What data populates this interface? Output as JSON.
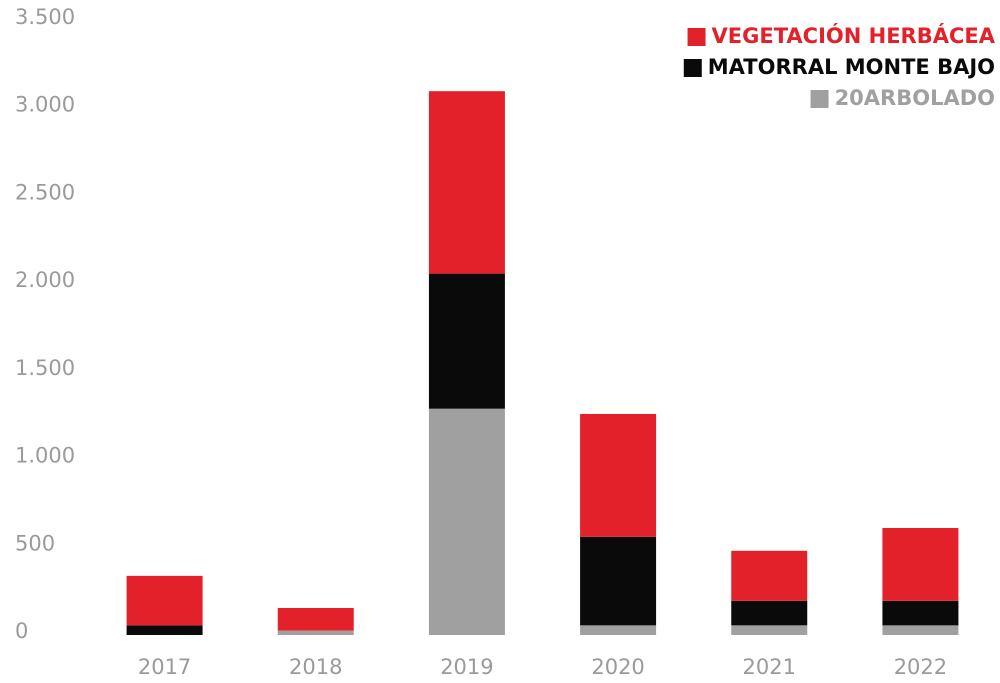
{
  "chart_data": {
    "type": "stacked_bar",
    "categories": [
      "2017",
      "2018",
      "2019",
      "2020",
      "2021",
      "2022"
    ],
    "series": [
      {
        "name": "20ARBOLADO",
        "color": "#a0a0a0",
        "values": [
          0,
          25,
          1290,
          55,
          55,
          55
        ]
      },
      {
        "name": "MATORRAL MONTE BAJO",
        "color": "#0a0a0a",
        "values": [
          55,
          0,
          770,
          505,
          140,
          140
        ]
      },
      {
        "name": "VEGETACIÓN HERBÁCEA",
        "color": "#e3212b",
        "values": [
          282,
          129,
          1040,
          700,
          285,
          415
        ]
      }
    ],
    "ylim": [
      0,
      3500
    ],
    "yticks": [
      0,
      500,
      {
        "value": 1000,
        "label": "1.000"
      },
      {
        "value": 1500,
        "label": "1.500"
      },
      {
        "value": 2000,
        "label": "2.000"
      },
      {
        "value": 2500,
        "label": "2.500"
      },
      {
        "value": 3000,
        "label": "3.000"
      },
      {
        "value": 3500,
        "label": "3.500"
      }
    ],
    "grid": false,
    "legend": "top-right"
  }
}
